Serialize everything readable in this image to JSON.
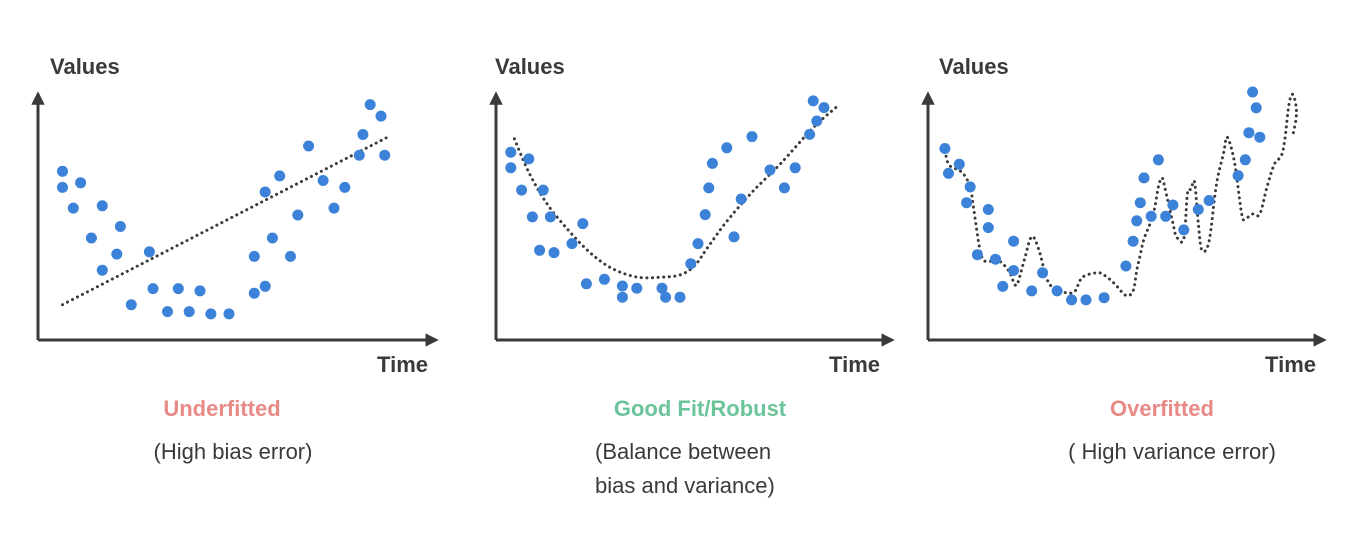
{
  "panels": [
    {
      "ylabel": "Values",
      "xlabel": "Time",
      "title": "Underfitted",
      "caption_lines": [
        "(High bias error)"
      ],
      "title_color": "#e88a86"
    },
    {
      "ylabel": "Values",
      "xlabel": "Time",
      "title": "Good Fit/Robust",
      "caption_lines": [
        "(Balance between",
        "bias and variance)"
      ],
      "title_color": "#6cc49a"
    },
    {
      "ylabel": "Values",
      "xlabel": "Time",
      "title": "Overfitted",
      "caption_lines": [
        "( High variance error)"
      ],
      "title_color": "#e88a86"
    }
  ],
  "colors": {
    "point": "#3b82d8",
    "axis": "#3a3a3a",
    "fit_line": "#3a3a3a",
    "caption": "#3a3a3a"
  },
  "chart_data": [
    {
      "type": "scatter",
      "fit": "linear",
      "xlim": [
        0,
        100
      ],
      "ylim": [
        0,
        100
      ],
      "fit_line": [
        [
          4,
          11
        ],
        [
          94,
          84
        ]
      ],
      "points": [
        [
          4,
          69
        ],
        [
          4,
          62
        ],
        [
          7,
          53
        ],
        [
          9,
          64
        ],
        [
          12,
          40
        ],
        [
          15,
          26
        ],
        [
          15,
          54
        ],
        [
          19,
          33
        ],
        [
          20,
          45
        ],
        [
          23,
          11
        ],
        [
          28,
          34
        ],
        [
          29,
          18
        ],
        [
          33,
          8
        ],
        [
          36,
          18
        ],
        [
          39,
          8
        ],
        [
          42,
          17
        ],
        [
          45,
          7
        ],
        [
          50,
          7
        ],
        [
          57,
          32
        ],
        [
          57,
          16
        ],
        [
          60,
          19
        ],
        [
          60,
          60
        ],
        [
          62,
          40
        ],
        [
          64,
          67
        ],
        [
          67,
          32
        ],
        [
          69,
          50
        ],
        [
          72,
          80
        ],
        [
          76,
          65
        ],
        [
          79,
          53
        ],
        [
          82,
          62
        ],
        [
          86,
          76
        ],
        [
          87,
          85
        ],
        [
          89,
          98
        ],
        [
          92,
          93
        ],
        [
          93,
          76
        ]
      ]
    },
    {
      "type": "scatter",
      "fit": "quadratic",
      "xlim": [
        0,
        100
      ],
      "ylim": [
        0,
        100
      ],
      "fit_line": [
        [
          4,
          79
        ],
        [
          8,
          64
        ],
        [
          13,
          50
        ],
        [
          19,
          38
        ],
        [
          25,
          28
        ],
        [
          31,
          21
        ],
        [
          38,
          17
        ],
        [
          45,
          17
        ],
        [
          50,
          18
        ],
        [
          54,
          22
        ],
        [
          58,
          31
        ],
        [
          63,
          42
        ],
        [
          70,
          55
        ],
        [
          78,
          68
        ],
        [
          87,
          84
        ],
        [
          94,
          94
        ]
      ],
      "points": [
        [
          3,
          73
        ],
        [
          3,
          66
        ],
        [
          6,
          56
        ],
        [
          8,
          70
        ],
        [
          9,
          44
        ],
        [
          11,
          29
        ],
        [
          12,
          56
        ],
        [
          14,
          44
        ],
        [
          15,
          28
        ],
        [
          20,
          32
        ],
        [
          23,
          41
        ],
        [
          24,
          14
        ],
        [
          29,
          16
        ],
        [
          34,
          8
        ],
        [
          34,
          13
        ],
        [
          38,
          12
        ],
        [
          45,
          12
        ],
        [
          46,
          8
        ],
        [
          50,
          8
        ],
        [
          53,
          23
        ],
        [
          55,
          32
        ],
        [
          57,
          45
        ],
        [
          58,
          57
        ],
        [
          59,
          68
        ],
        [
          63,
          75
        ],
        [
          65,
          35
        ],
        [
          67,
          52
        ],
        [
          70,
          80
        ],
        [
          75,
          65
        ],
        [
          79,
          57
        ],
        [
          82,
          66
        ],
        [
          86,
          81
        ],
        [
          87,
          96
        ],
        [
          88,
          87
        ],
        [
          90,
          93
        ]
      ]
    },
    {
      "type": "scatter",
      "fit": "interpolating",
      "xlim": [
        0,
        100
      ],
      "ylim": [
        0,
        100
      ],
      "fit_line": [
        [
          3,
          74
        ],
        [
          4,
          68
        ],
        [
          6,
          66
        ],
        [
          8,
          64
        ],
        [
          10,
          58
        ],
        [
          11,
          48
        ],
        [
          13,
          28
        ],
        [
          15,
          25
        ],
        [
          17,
          26
        ],
        [
          19,
          24
        ],
        [
          21,
          20
        ],
        [
          22,
          16
        ],
        [
          23,
          15
        ],
        [
          25,
          26
        ],
        [
          27,
          36
        ],
        [
          29,
          30
        ],
        [
          31,
          18
        ],
        [
          33,
          13
        ],
        [
          35,
          12
        ],
        [
          37,
          11
        ],
        [
          39,
          12
        ],
        [
          41,
          18
        ],
        [
          45,
          20
        ],
        [
          47,
          19
        ],
        [
          50,
          15
        ],
        [
          53,
          10
        ],
        [
          55,
          12
        ],
        [
          56,
          21
        ],
        [
          57,
          28
        ],
        [
          58,
          35
        ],
        [
          60,
          43
        ],
        [
          61,
          49
        ],
        [
          62,
          58
        ],
        [
          63,
          62
        ],
        [
          64,
          56
        ],
        [
          66,
          42
        ],
        [
          67,
          36
        ],
        [
          69,
          35
        ],
        [
          70,
          55
        ],
        [
          71,
          57
        ],
        [
          72,
          60
        ],
        [
          73,
          42
        ],
        [
          74,
          30
        ],
        [
          76,
          34
        ],
        [
          78,
          59
        ],
        [
          80,
          73
        ],
        [
          81,
          80
        ],
        [
          83,
          69
        ],
        [
          85,
          46
        ],
        [
          86,
          44
        ],
        [
          88,
          46
        ],
        [
          90,
          46
        ],
        [
          92,
          58
        ],
        [
          94,
          68
        ],
        [
          96,
          72
        ],
        [
          97,
          80
        ],
        [
          98,
          94
        ],
        [
          99,
          99
        ],
        [
          100,
          94
        ],
        [
          100,
          88
        ],
        [
          99,
          80
        ]
      ],
      "points": [
        [
          3,
          75
        ],
        [
          4,
          64
        ],
        [
          7,
          68
        ],
        [
          9,
          51
        ],
        [
          10,
          58
        ],
        [
          12,
          28
        ],
        [
          15,
          40
        ],
        [
          15,
          48
        ],
        [
          17,
          26
        ],
        [
          19,
          14
        ],
        [
          22,
          34
        ],
        [
          22,
          21
        ],
        [
          27,
          12
        ],
        [
          30,
          20
        ],
        [
          34,
          12
        ],
        [
          38,
          8
        ],
        [
          42,
          8
        ],
        [
          47,
          9
        ],
        [
          53,
          23
        ],
        [
          55,
          34
        ],
        [
          56,
          43
        ],
        [
          57,
          51
        ],
        [
          58,
          62
        ],
        [
          60,
          45
        ],
        [
          62,
          70
        ],
        [
          64,
          45
        ],
        [
          66,
          50
        ],
        [
          69,
          39
        ],
        [
          73,
          48
        ],
        [
          76,
          52
        ],
        [
          84,
          63
        ],
        [
          86,
          70
        ],
        [
          87,
          82
        ],
        [
          88,
          100
        ],
        [
          89,
          93
        ],
        [
          90,
          80
        ]
      ]
    }
  ]
}
